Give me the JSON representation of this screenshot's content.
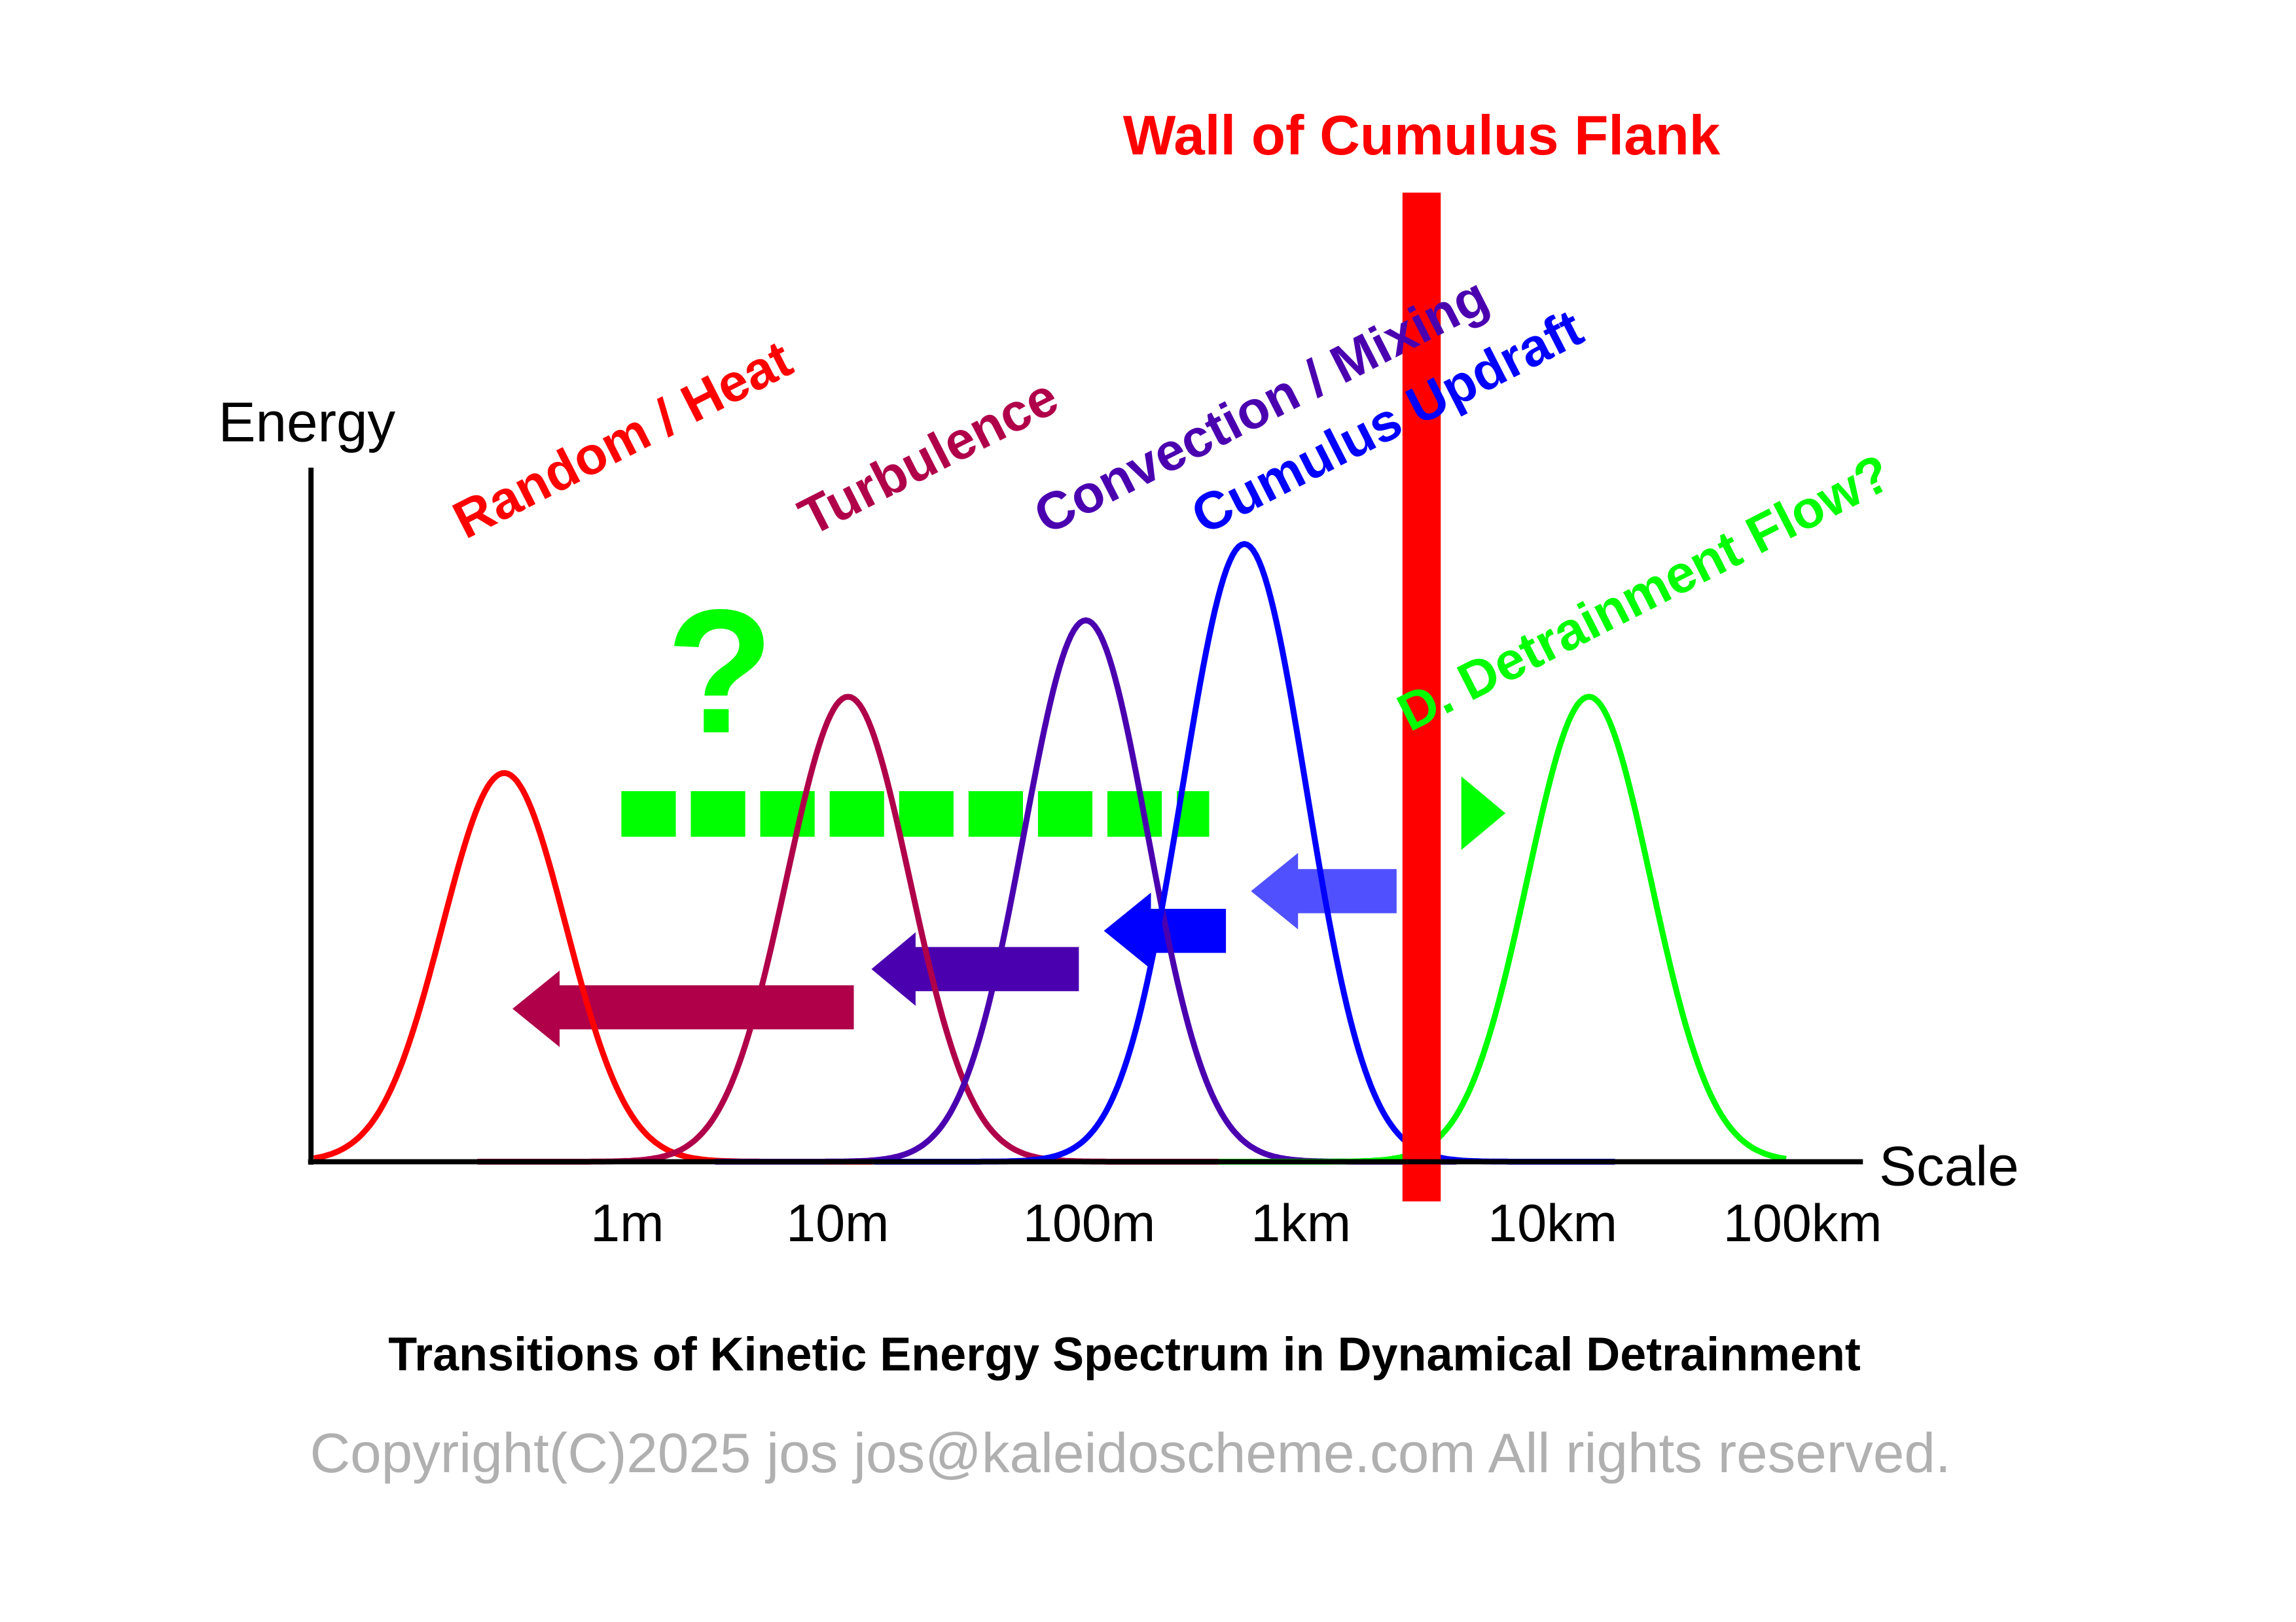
{
  "chart_data": {
    "type": "line",
    "title": "Wall of Cumulus Flank",
    "caption": "Transitions of Kinetic Energy Spectrum in Dynamical Detrainment",
    "copyright": "Copyright(C)2025 jos jos@kaleidoscheme.com All rights reserved.",
    "xlabel": "Scale",
    "ylabel": "Energy",
    "x_scale": "log",
    "x_ticks": [
      {
        "label": "1m",
        "value": 1
      },
      {
        "label": "10m",
        "value": 10
      },
      {
        "label": "100m",
        "value": 100
      },
      {
        "label": "1km",
        "value": 1000
      },
      {
        "label": "10km",
        "value": 10000
      },
      {
        "label": "100km",
        "value": 100000
      }
    ],
    "ylim": [
      0,
      1
    ],
    "series": [
      {
        "name": "Random / Heat",
        "color": "#ff0000",
        "peak_scale_m": 0.26,
        "peak_energy": 0.56
      },
      {
        "name": "Turbulence",
        "color": "#b0004a",
        "peak_scale_m": 11,
        "peak_energy": 0.67
      },
      {
        "name": "Convection / Mixing",
        "color": "#4b00b0",
        "peak_scale_m": 97,
        "peak_energy": 0.78
      },
      {
        "name": "Cumulus Updraft",
        "color": "#0000ff",
        "peak_scale_m": 540,
        "peak_energy": 0.89
      },
      {
        "name": "D. Detrainment Flow?",
        "color": "#00ff00",
        "peak_scale_m": 14000,
        "peak_energy": 0.67
      }
    ],
    "wall": {
      "label": "Wall of Cumulus Flank",
      "scale_m": 3000,
      "color": "#ff0000"
    },
    "question_mark": "?",
    "arrow_colors": {
      "turbulence_to_heat": "#b0004a",
      "convection_to_turbulence": "#4b00b0",
      "updraft_to_convection": "#0000ff",
      "flank_to_updraft": "#5050ff",
      "detrainment_dashed": "#00ff00"
    }
  }
}
